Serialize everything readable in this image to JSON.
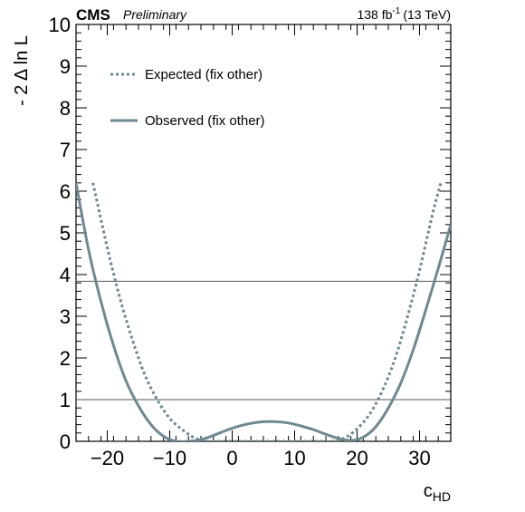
{
  "header": {
    "experiment": "CMS",
    "status": "Preliminary",
    "lumi_value": "138 fb",
    "lumi_exp": "-1",
    "lumi_energy": "(13 TeV)"
  },
  "chart_data": {
    "type": "line",
    "xlabel_main": "c",
    "xlabel_sub": "HD",
    "ylabel": "- 2 Δ ln L",
    "xlim": [
      -25,
      35
    ],
    "ylim": [
      0,
      10
    ],
    "x_ticks": [
      -20,
      -10,
      0,
      10,
      20,
      30
    ],
    "x_tick_labels": [
      "−20",
      "−10",
      "0",
      "10",
      "20",
      "30"
    ],
    "y_ticks": [
      0,
      1,
      2,
      3,
      4,
      5,
      6,
      7,
      8,
      9,
      10
    ],
    "y_tick_labels": [
      "0",
      "1",
      "2",
      "3",
      "4",
      "5",
      "6",
      "7",
      "8",
      "9",
      "10"
    ],
    "reference_lines": [
      1,
      3.84
    ],
    "legend_position": "top-left",
    "series": [
      {
        "name": "Expected (fix other)",
        "style": "dotted",
        "color": "#6e8891",
        "x": [
          -22.3,
          -20,
          -18,
          -16,
          -14,
          -12,
          -10,
          -8,
          -6,
          -4,
          -2,
          0,
          2,
          4,
          6,
          8,
          10,
          12,
          14,
          16,
          18,
          20,
          22,
          24,
          26,
          28,
          30,
          32,
          33.4
        ],
        "y": [
          6.2,
          4.65,
          3.45,
          2.45,
          1.6,
          1.0,
          0.55,
          0.28,
          0.08,
          0.0,
          0.0,
          0.0,
          0.0,
          0.0,
          0.0,
          0.0,
          0.0,
          0.0,
          0.0,
          0.0,
          0.08,
          0.3,
          0.65,
          1.2,
          1.95,
          2.95,
          4.1,
          5.4,
          6.2
        ]
      },
      {
        "name": "Observed (fix other)",
        "style": "solid",
        "color": "#6e8891",
        "x": [
          -25,
          -23,
          -21,
          -19,
          -17,
          -15,
          -13,
          -11,
          -9,
          -7,
          -5,
          -3,
          -1,
          1,
          3,
          5,
          7,
          9,
          11,
          13,
          15,
          17,
          19,
          21,
          23,
          25,
          27,
          29,
          31,
          33,
          35
        ],
        "y": [
          6.2,
          4.6,
          3.35,
          2.3,
          1.45,
          0.85,
          0.4,
          0.12,
          0.0,
          0.0,
          0.04,
          0.14,
          0.26,
          0.36,
          0.43,
          0.47,
          0.47,
          0.44,
          0.37,
          0.28,
          0.17,
          0.07,
          0.02,
          0.1,
          0.35,
          0.8,
          1.4,
          2.2,
          3.15,
          4.15,
          5.2
        ]
      }
    ]
  }
}
